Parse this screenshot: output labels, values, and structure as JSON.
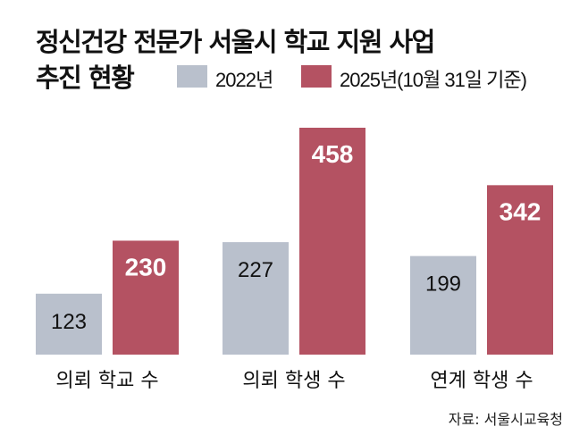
{
  "chart_data": {
    "type": "bar",
    "title": "정신건강 전문가 서울시 학교 지원 사업",
    "title_line2": "추진 현황",
    "categories": [
      "의뢰 학교 수",
      "의뢰 학생 수",
      "연계 학생 수"
    ],
    "series": [
      {
        "name": "2022년",
        "values": [
          123,
          227,
          199
        ],
        "color": "#b9c0cc"
      },
      {
        "name": "2025년(10월 31일 기준)",
        "values": [
          230,
          458,
          342
        ],
        "color": "#b45262"
      }
    ],
    "ylim": [
      0,
      458
    ],
    "grid": false,
    "legend": "top-right",
    "source": "자료: 서울시교육청"
  }
}
